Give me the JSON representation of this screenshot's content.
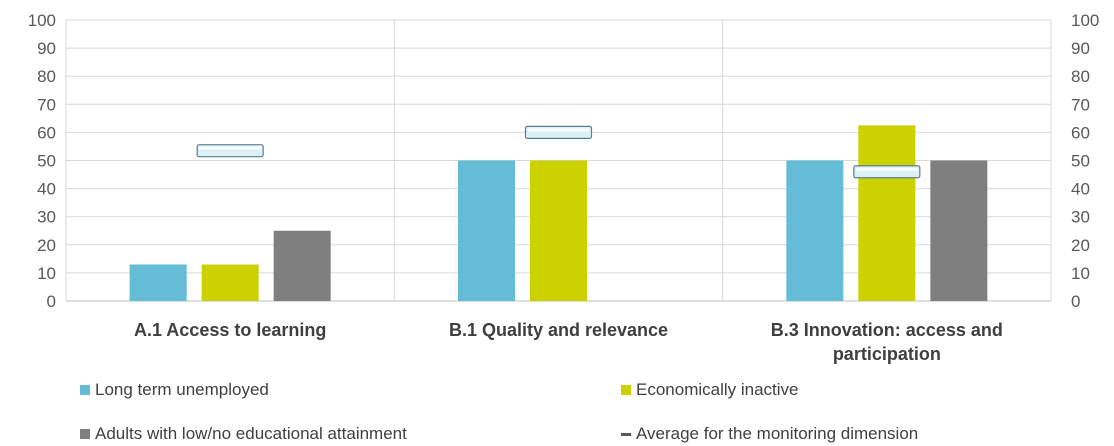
{
  "chart_data": {
    "type": "bar",
    "categories": [
      [
        "A.1 Access to learning"
      ],
      [
        "B.1 Quality and relevance"
      ],
      [
        "B.3 Innovation: access and",
        "participation"
      ]
    ],
    "series": [
      {
        "name": "Long term unemployed",
        "color": "#64bcd6",
        "values": [
          13,
          50,
          50
        ]
      },
      {
        "name": "Economically inactive",
        "color": "#ccd200",
        "values": [
          13,
          50,
          62.5
        ]
      },
      {
        "name": "Adults with low/no educational attainment",
        "color": "#7f7f7f",
        "values": [
          25,
          null,
          50
        ]
      }
    ],
    "average": {
      "name": "Average for the monitoring dimension",
      "values": [
        53.5,
        60,
        46
      ]
    },
    "ylim": [
      0,
      100
    ],
    "yticks": [
      "0",
      "10",
      "20",
      "30",
      "40",
      "50",
      "60",
      "70",
      "80",
      "90",
      "100"
    ],
    "grid": true,
    "legend_position": "bottom"
  }
}
